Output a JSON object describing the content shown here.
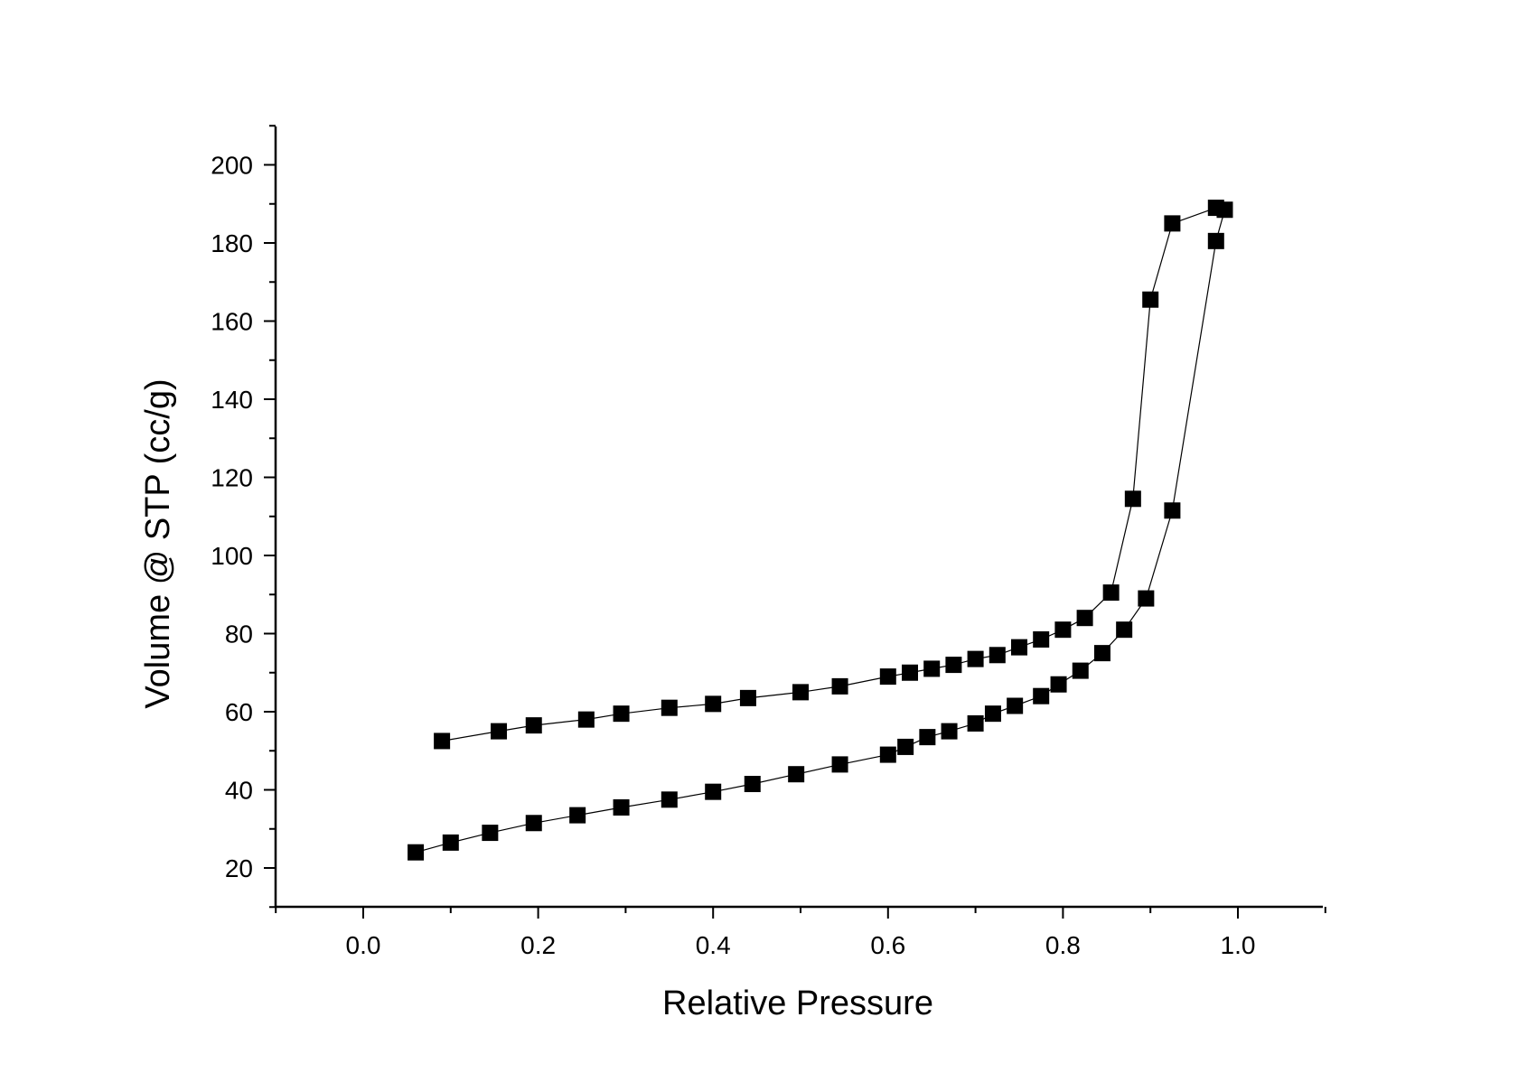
{
  "chart_data": {
    "type": "scatter",
    "title": "",
    "xlabel": "Relative Pressure",
    "ylabel": "Volume @ STP (cc/g)",
    "xlim": [
      -0.1,
      1.1
    ],
    "ylim": [
      10,
      210
    ],
    "x_ticks": [
      "0.0",
      "0.2",
      "0.4",
      "0.6",
      "0.8",
      "1.0"
    ],
    "y_ticks": [
      "20",
      "40",
      "60",
      "80",
      "100",
      "120",
      "140",
      "160",
      "180",
      "200"
    ],
    "grid": false,
    "legend": "none",
    "marker": "square",
    "marker_color": "#000000",
    "line_color": "#000000",
    "series": [
      {
        "x": [
          0.06,
          0.1,
          0.145,
          0.195,
          0.245,
          0.295,
          0.35,
          0.4,
          0.445,
          0.495,
          0.545,
          0.6,
          0.62,
          0.645,
          0.67,
          0.7,
          0.72,
          0.745,
          0.775,
          0.795,
          0.82,
          0.845,
          0.87,
          0.895,
          0.925,
          0.975,
          0.985
        ],
        "y": [
          24,
          26.5,
          29,
          31.5,
          33.5,
          35.5,
          37.5,
          39.5,
          41.5,
          44,
          46.5,
          49,
          51,
          53.5,
          55,
          57,
          59.5,
          61.5,
          64,
          67,
          70.5,
          75,
          81,
          89,
          111.5,
          180.5,
          188.5
        ]
      },
      {
        "x": [
          0.975,
          0.925,
          0.9,
          0.88,
          0.855,
          0.825,
          0.8,
          0.775,
          0.75,
          0.725,
          0.7,
          0.675,
          0.65,
          0.625,
          0.6,
          0.545,
          0.5,
          0.44,
          0.4,
          0.35,
          0.295,
          0.255,
          0.195,
          0.155,
          0.09
        ],
        "y": [
          189,
          185,
          165.5,
          114.5,
          90.5,
          84,
          81,
          78.5,
          76.5,
          74.5,
          73.5,
          72,
          71,
          70,
          69,
          66.5,
          65,
          63.5,
          62,
          61,
          59.5,
          58,
          56.5,
          55,
          52.5
        ]
      }
    ]
  }
}
